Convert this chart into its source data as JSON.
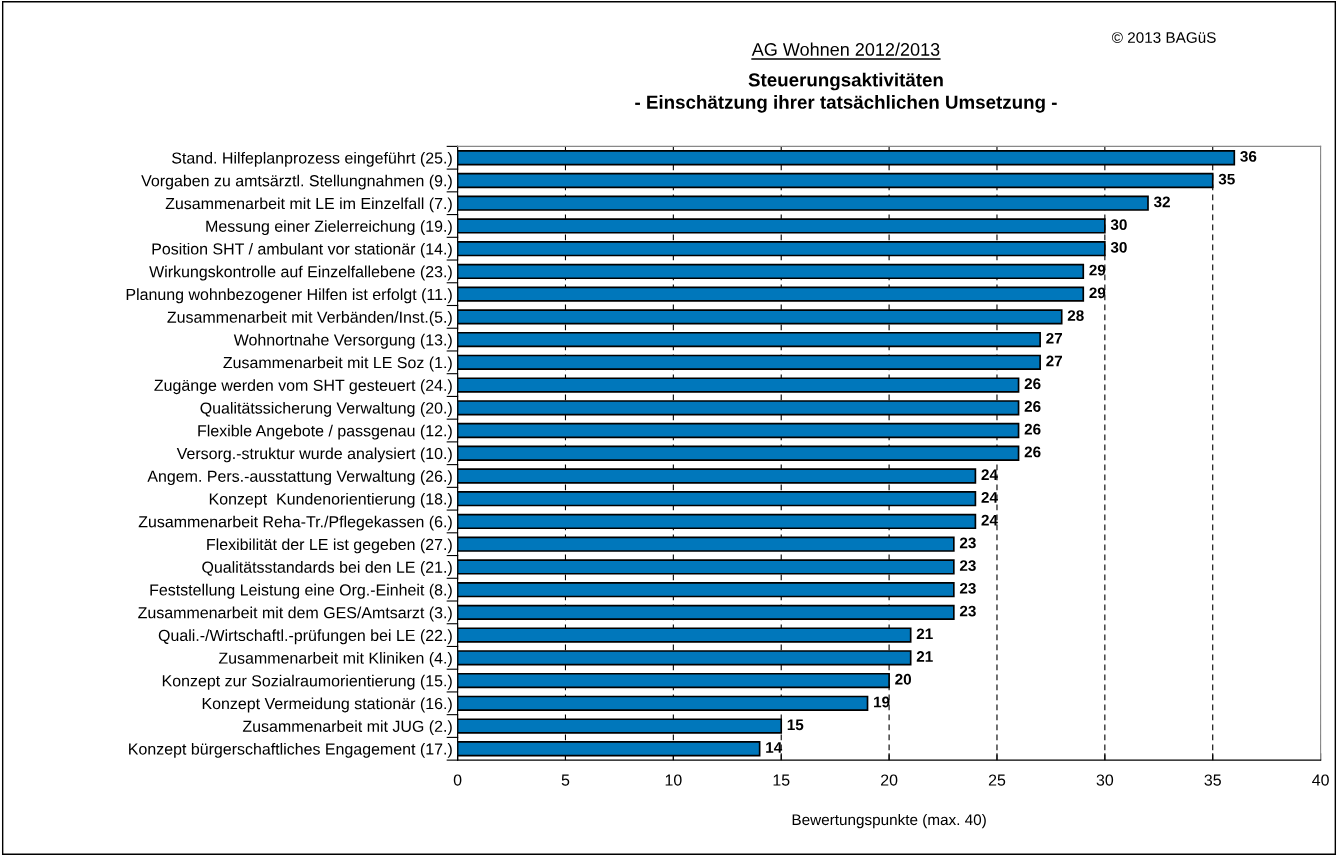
{
  "chart_data": {
    "type": "bar",
    "orientation": "horizontal",
    "title": "AG Wohnen 2012/2013",
    "subtitle": "Steuerungsaktivitäten\n- Einschätzung ihrer tatsächlichen Umsetzung -",
    "xlabel": "Bewertungspunkte (max. 40)",
    "annotations": [
      "© 2013 BAGüS"
    ],
    "categories": [
      "Stand. Hilfeplanprozess eingeführt (25.)",
      "Vorgaben zu amtsärztl. Stellungnahmen (9.)",
      "Zusammenarbeit mit LE im Einzelfall (7.)",
      "Messung einer Zielerreichung (19.)",
      "Position SHT / ambulant vor stationär (14.)",
      "Wirkungskontrolle auf Einzelfallebene (23.)",
      "Planung wohnbezogener Hilfen ist erfolgt (11.)",
      "Zusammenarbeit mit Verbänden/Inst.(5.)",
      "Wohnortnahe Versorgung (13.)",
      "Zusammenarbeit mit LE Soz (1.)",
      "Zugänge werden vom SHT gesteuert (24.)",
      "Qualitätssicherung Verwaltung (20.)",
      "Flexible Angebote / passgenau (12.)",
      "Versorg.-struktur wurde analysiert (10.)",
      "Angem. Pers.-ausstattung Verwaltung (26.)",
      "Konzept  Kundenorientierung (18.)",
      "Zusammenarbeit Reha-Tr./Pflegekassen (6.)",
      "Flexibilität der LE ist gegeben (27.)",
      "Qualitätsstandards bei den LE (21.)",
      "Feststellung Leistung eine Org.-Einheit (8.)",
      "Zusammenarbeit mit dem GES/Amtsarzt (3.)",
      "Quali.-/Wirtschaftl.-prüfungen bei LE (22.)",
      "Zusammenarbeit mit Kliniken (4.)",
      "Konzept zur Sozialraumorientierung (15.)",
      "Konzept Vermeidung stationär (16.)",
      "Zusammenarbeit mit JUG (2.)",
      "Konzept bürgerschaftliches Engagement (17.)"
    ],
    "values": [
      36,
      35,
      32,
      30,
      30,
      29,
      29,
      28,
      27,
      27,
      26,
      26,
      26,
      26,
      24,
      24,
      24,
      23,
      23,
      23,
      23,
      21,
      21,
      20,
      19,
      15,
      14
    ],
    "color": "#0077bb",
    "xlim": [
      0,
      40
    ],
    "xticks": [
      0,
      5,
      10,
      15,
      20,
      25,
      30,
      35,
      40
    ],
    "grid": "x",
    "data_labels": true,
    "legend": false
  }
}
